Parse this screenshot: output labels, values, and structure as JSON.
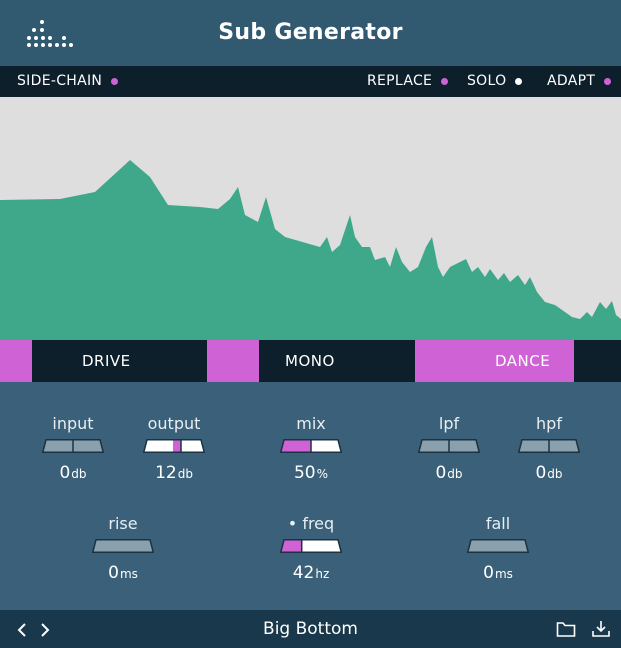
{
  "app": {
    "title": "Sub Generator",
    "logo_icon": "dotted-logo-icon"
  },
  "modes": {
    "sidechain": {
      "label": "SIDE-CHAIN",
      "active": false
    },
    "replace": {
      "label": "REPLACE",
      "active": false
    },
    "solo": {
      "label": "SOLO",
      "active": true
    },
    "adapt": {
      "label": "ADAPT",
      "active": false
    }
  },
  "switches": {
    "drive": {
      "label": "DRIVE",
      "active": false
    },
    "mono": {
      "label": "MONO",
      "active": false
    },
    "dance": {
      "label": "DANCE",
      "active": true
    }
  },
  "controls": {
    "input": {
      "label": "input",
      "value": "0",
      "unit": "db",
      "level": 0.5
    },
    "output": {
      "label": "output",
      "value": "12",
      "unit": "db",
      "level": 0.6
    },
    "mix": {
      "label": "mix",
      "value": "50",
      "unit": "%",
      "level": 0.5
    },
    "lpf": {
      "label": "lpf",
      "value": "0",
      "unit": "db",
      "level": 0.5
    },
    "hpf": {
      "label": "hpf",
      "value": "0",
      "unit": "db",
      "level": 0.5
    },
    "rise": {
      "label": "rise",
      "value": "0",
      "unit": "ms",
      "level": 0.0
    },
    "freq": {
      "label": "• freq",
      "value": "42",
      "unit": "hz",
      "level": 0.35
    },
    "fall": {
      "label": "fall",
      "value": "0",
      "unit": "ms",
      "level": 0.0
    }
  },
  "footer": {
    "prev_icon": "chevron-left-icon",
    "next_icon": "chevron-right-icon",
    "preset_name": "Big Bottom",
    "folder_icon": "folder-icon",
    "save_icon": "download-icon"
  },
  "colors": {
    "accent": "#cf63d6",
    "spectrum_fill": "#3fa88a",
    "spectrum_bg": "#dedede",
    "panel": "#3a6179",
    "dark_bar": "#0d1f2b"
  }
}
